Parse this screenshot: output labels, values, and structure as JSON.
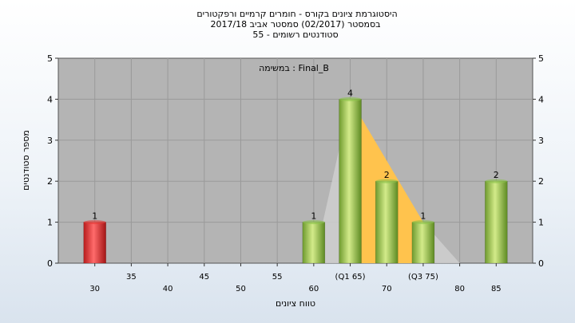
{
  "chart_data": {
    "type": "bar",
    "title_lines": [
      "היסטוגרמת ציונים בקורס - חומרים קרמיים ורפקטורים",
      "בסמסטר  (02/2017)  סמסטר אביב 2017/18",
      "סטודנטים רשומים - 55"
    ],
    "annotation": "במשימה : Final_B",
    "ylabel": "מספר סטודנטים",
    "xlabel": "טווח ציונים",
    "ylim": [
      0,
      5
    ],
    "y_ticks": [
      "0",
      "1",
      "2",
      "3",
      "4",
      "5"
    ],
    "x_ticks_top_row": [
      "35",
      "45",
      "55",
      "(Q1 65)",
      "(Q3 75)"
    ],
    "x_ticks_bottom_row": [
      "30",
      "40",
      "50",
      "60",
      "70",
      "80",
      "85"
    ],
    "x_tick_positions_top_row": [
      35,
      45,
      55,
      65,
      75
    ],
    "x_tick_positions_bottom_row": [
      30,
      40,
      50,
      60,
      70,
      80,
      85
    ],
    "xlim": [
      25,
      90
    ],
    "bars": [
      {
        "x": 30,
        "value": 1,
        "label": "1",
        "color": "#e53935"
      },
      {
        "x": 60,
        "value": 1,
        "label": "1",
        "color": "#8bc34a"
      },
      {
        "x": 65,
        "value": 4,
        "label": "4",
        "color": "#8bc34a"
      },
      {
        "x": 70,
        "value": 2,
        "label": "2",
        "color": "#8bc34a"
      },
      {
        "x": 75,
        "value": 1,
        "label": "1",
        "color": "#8bc34a"
      },
      {
        "x": 85,
        "value": 2,
        "label": "2",
        "color": "#8bc34a"
      }
    ],
    "box": {
      "min": 60,
      "q1": 65,
      "q3": 75,
      "max": 80
    },
    "colors": {
      "plot_bg": "#b4b4b4",
      "grid": "#9a9a9a",
      "box_fill": "#ffc34d",
      "box_whisker": "#cfcfcf"
    },
    "grid": true,
    "legend": "none"
  }
}
